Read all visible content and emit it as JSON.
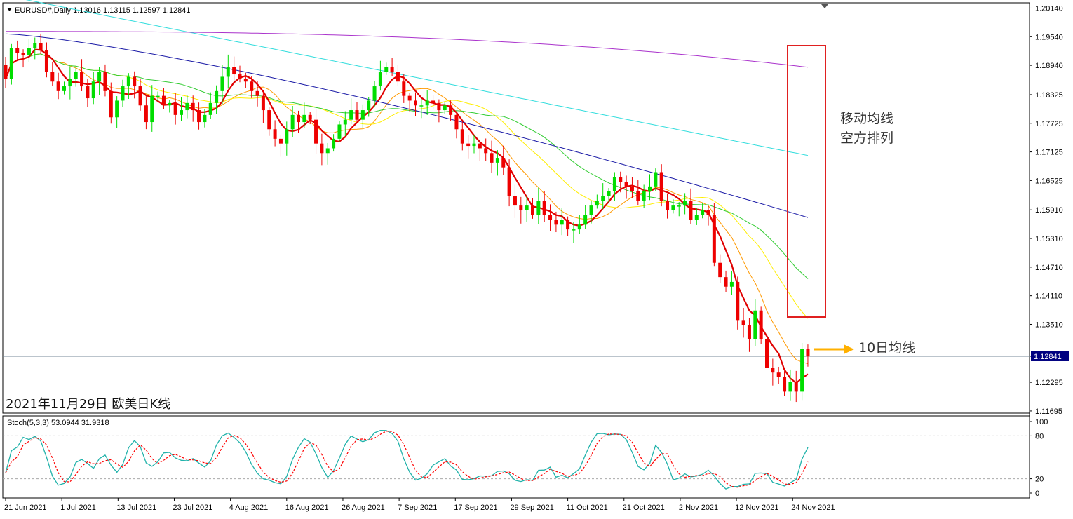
{
  "window": {
    "symbol_line": "EURUSD#,Daily  1.13016 1.13115 1.12597 1.12841",
    "stoch_line": "Stoch(5,3,3) 53.0944 31.9318"
  },
  "annotations": {
    "box_text_line1": "移动均线",
    "box_text_line2": "空方排列",
    "arrow_text": "10日均线",
    "caption": "2021年11月29日 欧美日K线"
  },
  "colors": {
    "bull": "#00dd00",
    "bear": "#ee0000",
    "ma5": "#e00000",
    "ma10": "#ff9900",
    "ma20": "#ffee00",
    "ma30": "#33cc33",
    "ma60": "#1a1aa6",
    "ma120": "#33dddd",
    "ma250": "#aa33cc",
    "stoch_main": "#20b2aa",
    "stoch_signal": "#ff0000",
    "annotation_box": "#e02020",
    "arrow": "#ffb000",
    "price_tag_bg": "#000080"
  },
  "chart_data": [
    {
      "type": "candlestick",
      "title": "EURUSD#,Daily",
      "ylim": [
        1.1165,
        1.2025
      ],
      "y_ticks": [
        "1.20140",
        "1.19540",
        "1.18940",
        "1.18325",
        "1.17725",
        "1.17125",
        "1.16525",
        "1.15910",
        "1.15310",
        "1.14710",
        "1.14110",
        "1.13510",
        "1.12841",
        "1.12295",
        "1.11695"
      ],
      "current_price": "1.12841",
      "x_tick_labels": [
        "21 Jun 2021",
        "1 Jul 2021",
        "13 Jul 2021",
        "23 Jul 2021",
        "4 Aug 2021",
        "16 Aug 2021",
        "26 Aug 2021",
        "7 Sep 2021",
        "17 Sep 2021",
        "29 Sep 2021",
        "11 Oct 2021",
        "21 Oct 2021",
        "2 Nov 2021",
        "12 Nov 2021",
        "24 Nov 2021"
      ],
      "closes": [
        1.1865,
        1.193,
        1.192,
        1.1915,
        1.193,
        1.194,
        1.1925,
        1.188,
        1.186,
        1.184,
        1.185,
        1.1865,
        1.188,
        1.185,
        1.1825,
        1.186,
        1.188,
        1.184,
        1.1785,
        1.182,
        1.185,
        1.187,
        1.185,
        1.181,
        1.1775,
        1.183,
        1.183,
        1.181,
        1.1815,
        1.179,
        1.18,
        1.1815,
        1.18,
        1.1775,
        1.179,
        1.1815,
        1.184,
        1.187,
        1.189,
        1.1875,
        1.1865,
        1.186,
        1.184,
        1.183,
        1.18,
        1.176,
        1.174,
        1.173,
        1.176,
        1.179,
        1.1775,
        1.179,
        1.178,
        1.173,
        1.171,
        1.172,
        1.174,
        1.177,
        1.178,
        1.18,
        1.178,
        1.18,
        1.182,
        1.185,
        1.188,
        1.189,
        1.188,
        1.186,
        1.183,
        1.182,
        1.181,
        1.181,
        1.182,
        1.1815,
        1.18,
        1.181,
        1.179,
        1.176,
        1.173,
        1.1725,
        1.173,
        1.172,
        1.171,
        1.169,
        1.17,
        1.168,
        1.162,
        1.16,
        1.159,
        1.16,
        1.158,
        1.161,
        1.158,
        1.157,
        1.156,
        1.157,
        1.155,
        1.155,
        1.156,
        1.158,
        1.16,
        1.161,
        1.162,
        1.163,
        1.166,
        1.165,
        1.164,
        1.163,
        1.161,
        1.163,
        1.164,
        1.167,
        1.161,
        1.159,
        1.16,
        1.16,
        1.161,
        1.157,
        1.158,
        1.159,
        1.158,
        1.148,
        1.145,
        1.143,
        1.144,
        1.136,
        1.135,
        1.132,
        1.138,
        1.132,
        1.126,
        1.125,
        1.124,
        1.121,
        1.123,
        1.121,
        1.13,
        1.1284
      ]
    },
    {
      "type": "line",
      "title": "Stoch(5,3,3) 53.0944 31.9318",
      "ylim": [
        0,
        100
      ],
      "y_ticks": [
        "100",
        "80",
        "20",
        "0"
      ],
      "levels": [
        80,
        20
      ],
      "series": [
        {
          "name": "Stoch main"
        },
        {
          "name": "Stoch signal"
        }
      ]
    }
  ]
}
